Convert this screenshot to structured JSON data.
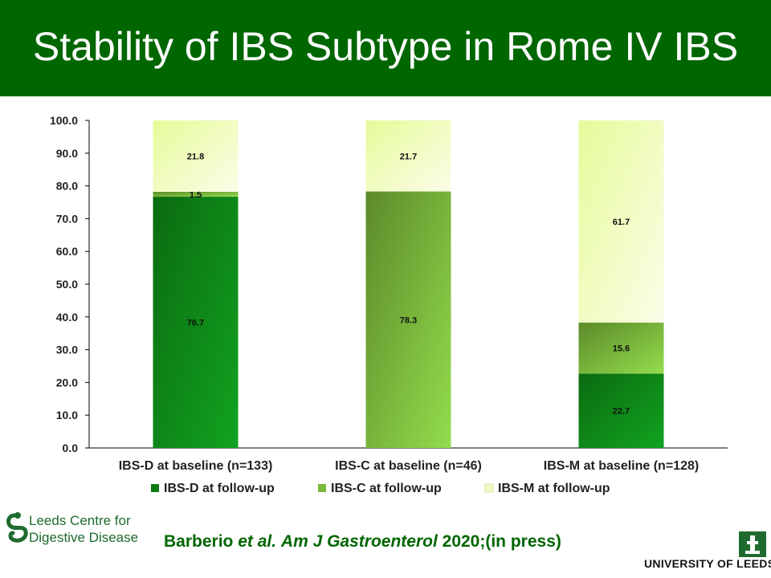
{
  "header": {
    "title": "Stability of IBS Subtype in Rome IV IBS"
  },
  "citation": {
    "authors": "Barberio",
    "etal": "et al.",
    "journal": "Am J Gastroenterol",
    "year_status": "2020;(in press)"
  },
  "logos": {
    "left_line1": "Leeds Centre for",
    "left_line2": "Digestive Disease",
    "right": "UNIVERSITY OF LEEDS"
  },
  "colors": {
    "title_bar": "#006600",
    "ibs_d": "#0a7a12",
    "ibs_c": "#7ab83a",
    "ibs_m": "#f2fbc8"
  },
  "chart_data": {
    "type": "bar",
    "stacked": true,
    "categories": [
      "IBS-D at baseline (n=133)",
      "IBS-C at baseline (n=46)",
      "IBS-M at baseline (n=128)"
    ],
    "series": [
      {
        "name": "IBS-D at follow-up",
        "values": [
          76.7,
          0,
          22.7
        ],
        "labels": [
          "76.7",
          "",
          "22.7"
        ]
      },
      {
        "name": "IBS-C at follow-up",
        "values": [
          1.5,
          78.3,
          15.6
        ],
        "labels": [
          "1.5",
          "78.3",
          "15.6"
        ]
      },
      {
        "name": "IBS-M at follow-up",
        "values": [
          21.8,
          21.7,
          61.7
        ],
        "labels": [
          "21.8",
          "21.7",
          "61.7"
        ]
      }
    ],
    "ylim": [
      0,
      100
    ],
    "yticks": [
      "0.0",
      "10.0",
      "20.0",
      "30.0",
      "40.0",
      "50.0",
      "60.0",
      "70.0",
      "80.0",
      "90.0",
      "100.0"
    ],
    "grid": false,
    "legend_position": "bottom"
  }
}
